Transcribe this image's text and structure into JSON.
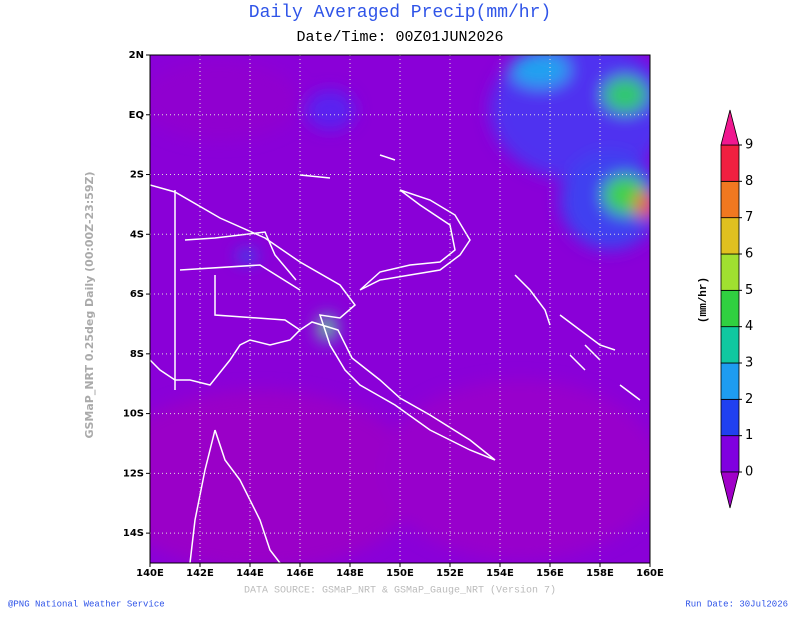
{
  "map": {
    "title": "Daily Averaged Precip(mm/hr)",
    "subtitle": "Date/Time: 00Z01JUN2026",
    "side_label": "GSMaP_NRT 0.25deg Daily (00:00Z-23:59Z)",
    "lonlim": [
      140,
      160
    ],
    "latlim": [
      -15,
      2
    ],
    "lon_ticks": [
      {
        "value": 140,
        "label": "140E"
      },
      {
        "value": 142,
        "label": "142E"
      },
      {
        "value": 144,
        "label": "144E"
      },
      {
        "value": 146,
        "label": "146E"
      },
      {
        "value": 148,
        "label": "148E"
      },
      {
        "value": 150,
        "label": "150E"
      },
      {
        "value": 152,
        "label": "152E"
      },
      {
        "value": 154,
        "label": "154E"
      },
      {
        "value": 156,
        "label": "156E"
      },
      {
        "value": 158,
        "label": "158E"
      },
      {
        "value": 160,
        "label": "160E"
      }
    ],
    "lat_ticks": [
      {
        "value": 2,
        "label": "2N"
      },
      {
        "value": 0,
        "label": "EQ"
      },
      {
        "value": -2,
        "label": "2S"
      },
      {
        "value": -4,
        "label": "4S"
      },
      {
        "value": -6,
        "label": "6S"
      },
      {
        "value": -8,
        "label": "8S"
      },
      {
        "value": -10,
        "label": "10S"
      },
      {
        "value": -12,
        "label": "12S"
      },
      {
        "value": -14,
        "label": "14S"
      }
    ],
    "colorbar": {
      "label": "(mm/hr)",
      "lim": [
        0,
        9
      ],
      "ticks": [
        0,
        1,
        2,
        3,
        4,
        5,
        6,
        7,
        8,
        9
      ],
      "colors": [
        "#8000e0",
        "#2040f0",
        "#1e9cf0",
        "#10c8a0",
        "#30d040",
        "#a0e030",
        "#e0c020",
        "#f07820",
        "#f02040"
      ],
      "under_color": "#a000c8",
      "over_color": "#f01890"
    },
    "source": "DATA SOURCE: GSMaP_NRT & GSMaP_Gauge_NRT (Version 7)",
    "credit": "@PNG National Weather Service",
    "run_date": "Run Date: 30Jul2026"
  }
}
